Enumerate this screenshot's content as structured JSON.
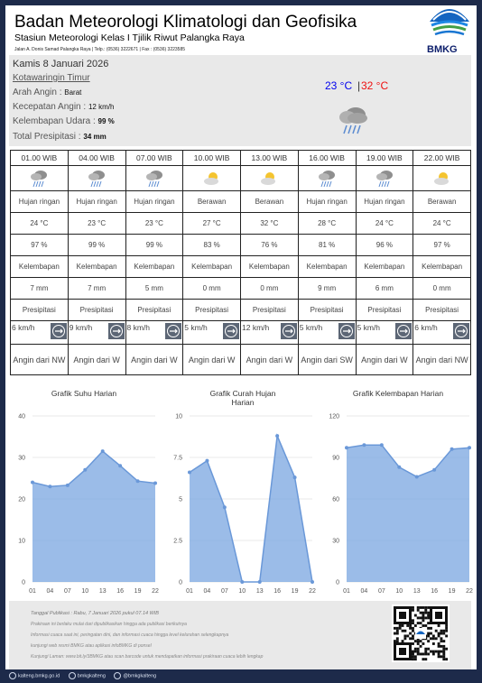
{
  "header": {
    "title": "Badan Meteorologi Klimatologi dan Geofisika",
    "subtitle": "Stasiun Meteorologi Kelas I Tjilik Riwut Palangka Raya",
    "address": "Jalan A. Donis Samad Palangka Raya | Telp.: (0536) 3222671 | Fax : (0536) 3223585",
    "logo_text": "BMKG"
  },
  "current": {
    "date": "Kamis 8 Januari 2026",
    "region": "Kotawaringin Timur",
    "wind_direction_label": "Arah Angin : ",
    "wind_direction": "Barat",
    "wind_speed_label": "Kecepatan Angin : ",
    "wind_speed": "12 km/h",
    "humidity_label": "Kelembapan Udara : ",
    "humidity": "99 %",
    "precip_label": "Total Presipitasi : ",
    "precip": "34 mm",
    "temp_min": "23 °C",
    "temp_sep": "|",
    "temp_max": "32 °C",
    "icon": "rain-cloud-icon"
  },
  "forecast": {
    "times": [
      "01.00 WIB",
      "04.00 WIB",
      "07.00 WIB",
      "10.00 WIB",
      "13.00 WIB",
      "16.00 WIB",
      "19.00 WIB",
      "22.00 WIB"
    ],
    "icons": [
      "rain-cloud-icon",
      "rain-cloud-icon",
      "rain-cloud-icon",
      "sun-cloud-icon",
      "sun-cloud-icon",
      "rain-cloud-icon",
      "rain-cloud-icon",
      "sun-cloud-icon"
    ],
    "conditions": [
      "Hujan ringan",
      "Hujan ringan",
      "Hujan ringan",
      "Berawan",
      "Berawan",
      "Hujan ringan",
      "Hujan ringan",
      "Berawan"
    ],
    "temps": [
      "24 °C",
      "23 °C",
      "23 °C",
      "27 °C",
      "32 °C",
      "28 °C",
      "24 °C",
      "24 °C"
    ],
    "humidity": [
      "97 %",
      "99 %",
      "99 %",
      "83 %",
      "76 %",
      "81 %",
      "96 %",
      "97 %"
    ],
    "humidity_label": [
      "Kelembapan",
      "Kelembapan",
      "Kelembapan",
      "Kelembapan",
      "Kelembapan",
      "Kelembapan",
      "Kelembapan",
      "Kelembapan"
    ],
    "precip": [
      "7 mm",
      "7 mm",
      "5 mm",
      "0 mm",
      "0 mm",
      "9 mm",
      "6 mm",
      "0 mm"
    ],
    "precip_label": [
      "Presipitasi",
      "Presipitasi",
      "Presipitasi",
      "Presipitasi",
      "Presipitasi",
      "Presipitasi",
      "Presipitasi",
      "Presipitasi"
    ],
    "wind_speed": [
      "6 km/h",
      "9 km/h",
      "8 km/h",
      "5 km/h",
      "12 km/h",
      "5 km/h",
      "5 km/h",
      "6 km/h"
    ],
    "wind_dir": [
      "Angin dari NW",
      "Angin dari W",
      "Angin dari W",
      "Angin dari W",
      "Angin dari W",
      "Angin dari SW",
      "Angin dari W",
      "Angin dari NW"
    ]
  },
  "chart_data": [
    {
      "type": "area",
      "title": "Grafik Suhu Harian",
      "categories": [
        "01",
        "04",
        "07",
        "10",
        "13",
        "16",
        "19",
        "22"
      ],
      "values": [
        24,
        23,
        23.3,
        27,
        31.5,
        28,
        24.3,
        23.8
      ],
      "ylim": [
        0,
        40
      ],
      "yticks": [
        0,
        10,
        20,
        30,
        40
      ],
      "color": "#7aa6e0"
    },
    {
      "type": "area",
      "title": "Grafik Curah Hujan Harian",
      "categories": [
        "01",
        "04",
        "07",
        "10",
        "13",
        "16",
        "19",
        "22"
      ],
      "values": [
        6.6,
        7.3,
        4.5,
        0,
        0,
        8.8,
        6.3,
        0
      ],
      "ylim": [
        0,
        10
      ],
      "yticks": [
        0,
        2.5,
        5,
        7.5,
        10
      ],
      "color": "#7aa6e0"
    },
    {
      "type": "area",
      "title": "Grafik Kelembapan Harian",
      "categories": [
        "01",
        "04",
        "07",
        "10",
        "13",
        "16",
        "19",
        "22"
      ],
      "values": [
        97,
        99,
        99,
        83,
        76,
        81,
        96,
        97
      ],
      "ylim": [
        0,
        120
      ],
      "yticks": [
        0,
        30,
        60,
        90,
        120
      ],
      "color": "#7aa6e0"
    }
  ],
  "footer": {
    "publication": "Tanggal Publikasi : Rabu, 7 Januari 2026 pukul 07.14 WIB",
    "lines": [
      "Prakiraan ini berlaku mulai dari dipublikasikan hingga ada publikasi berikutnya",
      "Informasi cuaca saat ini, peringatan dini, dan informasi cuaca hingga level kelurahan selengkapnya",
      "kunjungi web resmi BMKG atau aplikasi infoBMKG di ponsel",
      "Kunjungi Laman: www.bit.ly/3BMKG atau scan barcode untuk mendapatkan informasi prakiraan cuaca lebih lengkap"
    ]
  },
  "socials": [
    "kalteng.bmkg.go.id",
    "bmkgkalteng",
    "@bmkgkalteng"
  ]
}
